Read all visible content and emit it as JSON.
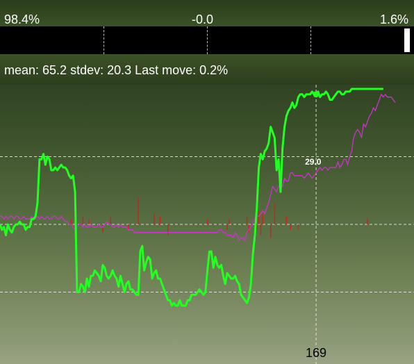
{
  "top_bar": {
    "left_value": "98.4%",
    "center_value": "-0.0",
    "right_value": "1.6%"
  },
  "meter": {
    "fill_fraction": 0.016
  },
  "stats": {
    "text": "mean: 65.2 stdev: 20.3 Last move: 0.2%"
  },
  "cursor": {
    "x_readout": "169",
    "value_label": "29.0"
  },
  "colors": {
    "probability_line": "#22ff22",
    "secondary_line": "#cc33cc",
    "moves": "#cc2222",
    "grid": "#e6e6e6",
    "meter_marker": "#ffffff"
  },
  "chart_data": {
    "type": "line",
    "title": "",
    "xlabel": "",
    "ylabel": "",
    "ylim": [
      0,
      100
    ],
    "xlim": [
      0,
      199
    ],
    "grid": true,
    "series": [
      {
        "key": "probability",
        "values": [
          50,
          48,
          49,
          46,
          50,
          48,
          47,
          49,
          50,
          50,
          51,
          50,
          50,
          48,
          49,
          49,
          52,
          52,
          53,
          58,
          74,
          74,
          76,
          72,
          75,
          74,
          70,
          70,
          71,
          70,
          71,
          72,
          71,
          71,
          70,
          68,
          67,
          68,
          62,
          25,
          25,
          28,
          27,
          25,
          30,
          27,
          31,
          31,
          33,
          32,
          31,
          29,
          35,
          34,
          31,
          30,
          31,
          33,
          31,
          30,
          27,
          31,
          28,
          25,
          28,
          29,
          26,
          26,
          25,
          24,
          24,
          40,
          42,
          33,
          36,
          38,
          37,
          30,
          32,
          33,
          30,
          30,
          28,
          26,
          24,
          22,
          22,
          20,
          21,
          20,
          20,
          22,
          20,
          20,
          20,
          22,
          22,
          24,
          24,
          24,
          25,
          26,
          25,
          24,
          25,
          33,
          40,
          40,
          34,
          38,
          35,
          34,
          35,
          31,
          28,
          32,
          31,
          30,
          30,
          31,
          29,
          28,
          24,
          23,
          22,
          21,
          23,
          28,
          39,
          46,
          56,
          71,
          76,
          74,
          77,
          78,
          80,
          86,
          84,
          82,
          70,
          74,
          62,
          78,
          86,
          90,
          92,
          93,
          95,
          93,
          94,
          97,
          98,
          98,
          97,
          98,
          98,
          98,
          99,
          98,
          98,
          99,
          97,
          98,
          98,
          99,
          98,
          96,
          96,
          97,
          98,
          99,
          99,
          98,
          98,
          99,
          99,
          99,
          100,
          100,
          100,
          100,
          100,
          100,
          100,
          100,
          100,
          100,
          100,
          100,
          100,
          100,
          100,
          100,
          100
        ]
      },
      {
        "key": "secondary",
        "values": [
          53,
          53,
          52,
          53,
          52,
          53,
          53,
          52,
          53,
          53,
          52,
          52,
          53,
          52,
          52,
          52,
          53,
          52,
          52,
          53,
          52,
          53,
          52,
          52,
          53,
          52,
          52,
          53,
          53,
          52,
          52,
          53,
          52,
          51,
          51,
          50,
          50,
          49,
          48,
          49,
          50,
          50,
          49,
          50,
          49,
          49,
          50,
          49,
          49,
          49,
          50,
          49,
          49,
          50,
          51,
          50,
          50,
          49,
          49,
          50,
          49,
          50,
          49,
          49,
          49,
          48,
          48,
          48,
          47,
          47,
          47,
          47,
          47,
          47,
          47,
          47,
          47,
          47,
          47,
          47,
          47,
          47,
          47,
          47,
          47,
          47,
          47,
          47,
          47,
          47,
          47,
          47,
          47,
          47,
          47,
          47,
          47,
          47,
          47,
          47,
          47,
          47,
          47,
          47,
          47,
          47,
          47,
          47,
          47,
          47,
          47,
          48,
          48,
          47,
          47,
          46,
          46,
          46,
          45,
          47,
          46,
          44,
          45,
          45,
          44,
          47,
          48,
          49,
          51,
          52,
          53,
          53,
          54,
          55,
          54,
          56,
          58,
          61,
          64,
          63,
          62,
          64,
          65,
          64,
          67,
          66,
          66,
          69,
          69,
          68,
          68,
          68,
          68,
          68,
          67,
          68,
          69,
          68,
          67,
          68,
          69,
          70,
          71,
          70,
          71,
          71,
          70,
          71,
          71,
          71,
          71,
          73,
          71,
          72,
          74,
          74,
          72,
          75,
          77,
          82,
          84,
          85,
          84,
          82,
          87,
          86,
          88,
          90,
          91,
          93,
          92,
          94,
          96,
          98,
          97,
          98,
          97,
          97,
          97,
          96,
          95
        ]
      }
    ],
    "moves_series": {
      "key": "moves",
      "baseline": 50,
      "values": [
        0,
        0,
        0,
        0,
        0,
        0,
        0,
        0,
        0,
        0,
        0,
        0,
        0,
        0,
        0,
        0,
        0,
        0,
        0,
        0,
        0,
        0,
        0,
        0,
        0,
        0,
        0,
        0,
        0,
        0,
        0,
        0,
        0,
        0,
        0,
        0,
        2,
        0,
        0,
        0,
        0,
        0,
        3,
        0,
        0,
        2,
        0,
        0,
        0,
        0,
        0,
        0,
        -3,
        0,
        0,
        0,
        3,
        0,
        0,
        0,
        0,
        0,
        0,
        0,
        0,
        -2,
        0,
        0,
        0,
        0,
        10,
        0,
        0,
        0,
        0,
        0,
        0,
        0,
        4,
        0,
        0,
        3,
        0,
        0,
        0,
        -4,
        0,
        0,
        0,
        0,
        0,
        0,
        0,
        0,
        0,
        0,
        0,
        0,
        0,
        0,
        0,
        0,
        0,
        0,
        0,
        2,
        0,
        0,
        0,
        0,
        0,
        0,
        0,
        0,
        0,
        -2,
        2,
        0,
        0,
        0,
        0,
        0,
        0,
        0,
        0,
        3,
        -3,
        0,
        0,
        0,
        -2,
        5,
        -4,
        4,
        0,
        0,
        0,
        -5,
        0,
        8,
        0,
        0,
        0,
        0,
        0,
        3,
        0,
        -2,
        0,
        0,
        0,
        -2,
        0,
        0,
        0,
        0,
        0,
        0,
        0,
        0,
        0,
        0,
        0,
        0,
        0,
        0,
        0,
        0,
        0,
        0,
        0,
        0,
        0,
        0,
        0,
        0,
        0,
        0,
        0,
        0,
        0,
        0,
        0,
        0,
        0,
        0,
        2,
        0,
        0,
        0,
        0,
        0,
        0,
        0,
        0,
        0,
        0,
        0,
        0,
        0,
        0,
        0
      ]
    },
    "gridlines_y": [
      25,
      50,
      75
    ],
    "cursor_x": 160
  }
}
